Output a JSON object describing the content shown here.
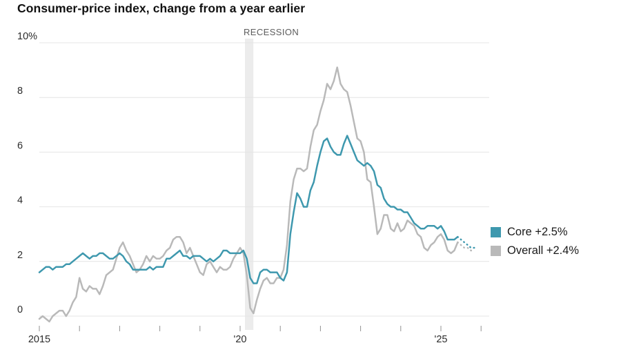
{
  "title": "Consumer-price index, change from a year earlier",
  "legend": [
    {
      "label": "Core +2.5%",
      "color": "#3e98ae"
    },
    {
      "label": "Overall +2.4%",
      "color": "#b9b9b9"
    }
  ],
  "chart_data": {
    "type": "line",
    "title": "Consumer-price index, change from a year earlier",
    "xlabel": "",
    "ylabel": "",
    "x_unit": "year",
    "x_start": 2015.0,
    "x_step": "monthly",
    "xlim": [
      2015,
      2026.2
    ],
    "ylim": [
      -0.5,
      10
    ],
    "grid": "horizontal",
    "legend_position": "right",
    "recession_label": "RECESSION",
    "recession_band": {
      "x0": 2020.12,
      "x1": 2020.33
    },
    "colors": {
      "grid": "#e4e4e4",
      "band": "#ececec",
      "tick_mark": "#909090"
    },
    "y_ticks": [
      {
        "v": 0,
        "label": "0"
      },
      {
        "v": 2,
        "label": "2"
      },
      {
        "v": 4,
        "label": "4"
      },
      {
        "v": 6,
        "label": "6"
      },
      {
        "v": 8,
        "label": "8"
      },
      {
        "v": 10,
        "label": "10%"
      }
    ],
    "x_ticks": [
      {
        "v": 2015,
        "label": "2015"
      },
      {
        "v": 2016,
        "label": ""
      },
      {
        "v": 2017,
        "label": ""
      },
      {
        "v": 2018,
        "label": ""
      },
      {
        "v": 2019,
        "label": ""
      },
      {
        "v": 2020,
        "label": "'20"
      },
      {
        "v": 2021,
        "label": ""
      },
      {
        "v": 2022,
        "label": ""
      },
      {
        "v": 2023,
        "label": ""
      },
      {
        "v": 2024,
        "label": ""
      },
      {
        "v": 2025,
        "label": "'25"
      },
      {
        "v": 2026,
        "label": ""
      }
    ],
    "series": [
      {
        "name": "Overall",
        "color": "#b9b9b9",
        "final_value": 2.4,
        "dotted_from": 125,
        "values": [
          -0.1,
          0.0,
          -0.1,
          -0.2,
          0.0,
          0.1,
          0.2,
          0.2,
          0.0,
          0.2,
          0.5,
          0.7,
          1.4,
          1.0,
          0.9,
          1.1,
          1.0,
          1.0,
          0.8,
          1.1,
          1.5,
          1.6,
          1.7,
          2.1,
          2.5,
          2.7,
          2.4,
          2.2,
          1.9,
          1.6,
          1.7,
          1.9,
          2.2,
          2.0,
          2.2,
          2.1,
          2.1,
          2.2,
          2.4,
          2.5,
          2.8,
          2.9,
          2.9,
          2.7,
          2.3,
          2.5,
          2.2,
          1.9,
          1.6,
          1.5,
          1.9,
          2.0,
          1.8,
          1.6,
          1.8,
          1.7,
          1.7,
          1.8,
          2.1,
          2.3,
          2.5,
          2.3,
          1.5,
          0.3,
          0.1,
          0.6,
          1.0,
          1.3,
          1.4,
          1.2,
          1.2,
          1.4,
          1.4,
          1.7,
          2.6,
          4.2,
          5.0,
          5.4,
          5.4,
          5.3,
          5.4,
          6.2,
          6.8,
          7.0,
          7.5,
          7.9,
          8.5,
          8.3,
          8.6,
          9.1,
          8.5,
          8.3,
          8.2,
          7.7,
          7.1,
          6.5,
          6.4,
          6.0,
          5.0,
          4.9,
          4.0,
          3.0,
          3.2,
          3.7,
          3.7,
          3.2,
          3.1,
          3.4,
          3.1,
          3.2,
          3.5,
          3.4,
          3.3,
          3.0,
          2.9,
          2.5,
          2.4,
          2.6,
          2.7,
          2.9,
          3.0,
          2.8,
          2.4,
          2.3,
          2.4,
          2.7,
          2.6,
          2.5,
          2.5,
          2.4,
          2.4
        ]
      },
      {
        "name": "Core",
        "color": "#3e98ae",
        "final_value": 2.5,
        "dotted_from": 125,
        "values": [
          1.6,
          1.7,
          1.8,
          1.8,
          1.7,
          1.8,
          1.8,
          1.8,
          1.9,
          1.9,
          2.0,
          2.1,
          2.2,
          2.3,
          2.2,
          2.1,
          2.2,
          2.2,
          2.3,
          2.3,
          2.2,
          2.1,
          2.1,
          2.2,
          2.3,
          2.2,
          2.0,
          1.9,
          1.7,
          1.7,
          1.7,
          1.7,
          1.7,
          1.8,
          1.7,
          1.8,
          1.8,
          1.8,
          2.1,
          2.1,
          2.2,
          2.3,
          2.4,
          2.2,
          2.2,
          2.1,
          2.2,
          2.2,
          2.2,
          2.1,
          2.0,
          2.1,
          2.0,
          2.1,
          2.2,
          2.4,
          2.4,
          2.3,
          2.3,
          2.3,
          2.3,
          2.4,
          2.1,
          1.4,
          1.2,
          1.2,
          1.6,
          1.7,
          1.7,
          1.6,
          1.6,
          1.6,
          1.4,
          1.3,
          1.6,
          3.0,
          3.8,
          4.5,
          4.3,
          4.0,
          4.0,
          4.6,
          4.9,
          5.5,
          6.0,
          6.4,
          6.5,
          6.2,
          6.0,
          5.9,
          5.9,
          6.3,
          6.6,
          6.3,
          6.0,
          5.7,
          5.6,
          5.5,
          5.6,
          5.5,
          5.3,
          4.8,
          4.7,
          4.3,
          4.1,
          4.0,
          4.0,
          3.9,
          3.9,
          3.8,
          3.8,
          3.6,
          3.4,
          3.3,
          3.2,
          3.2,
          3.3,
          3.3,
          3.3,
          3.2,
          3.3,
          3.1,
          2.8,
          2.8,
          2.8,
          2.9,
          2.8,
          2.7,
          2.6,
          2.5,
          2.5
        ]
      }
    ]
  }
}
